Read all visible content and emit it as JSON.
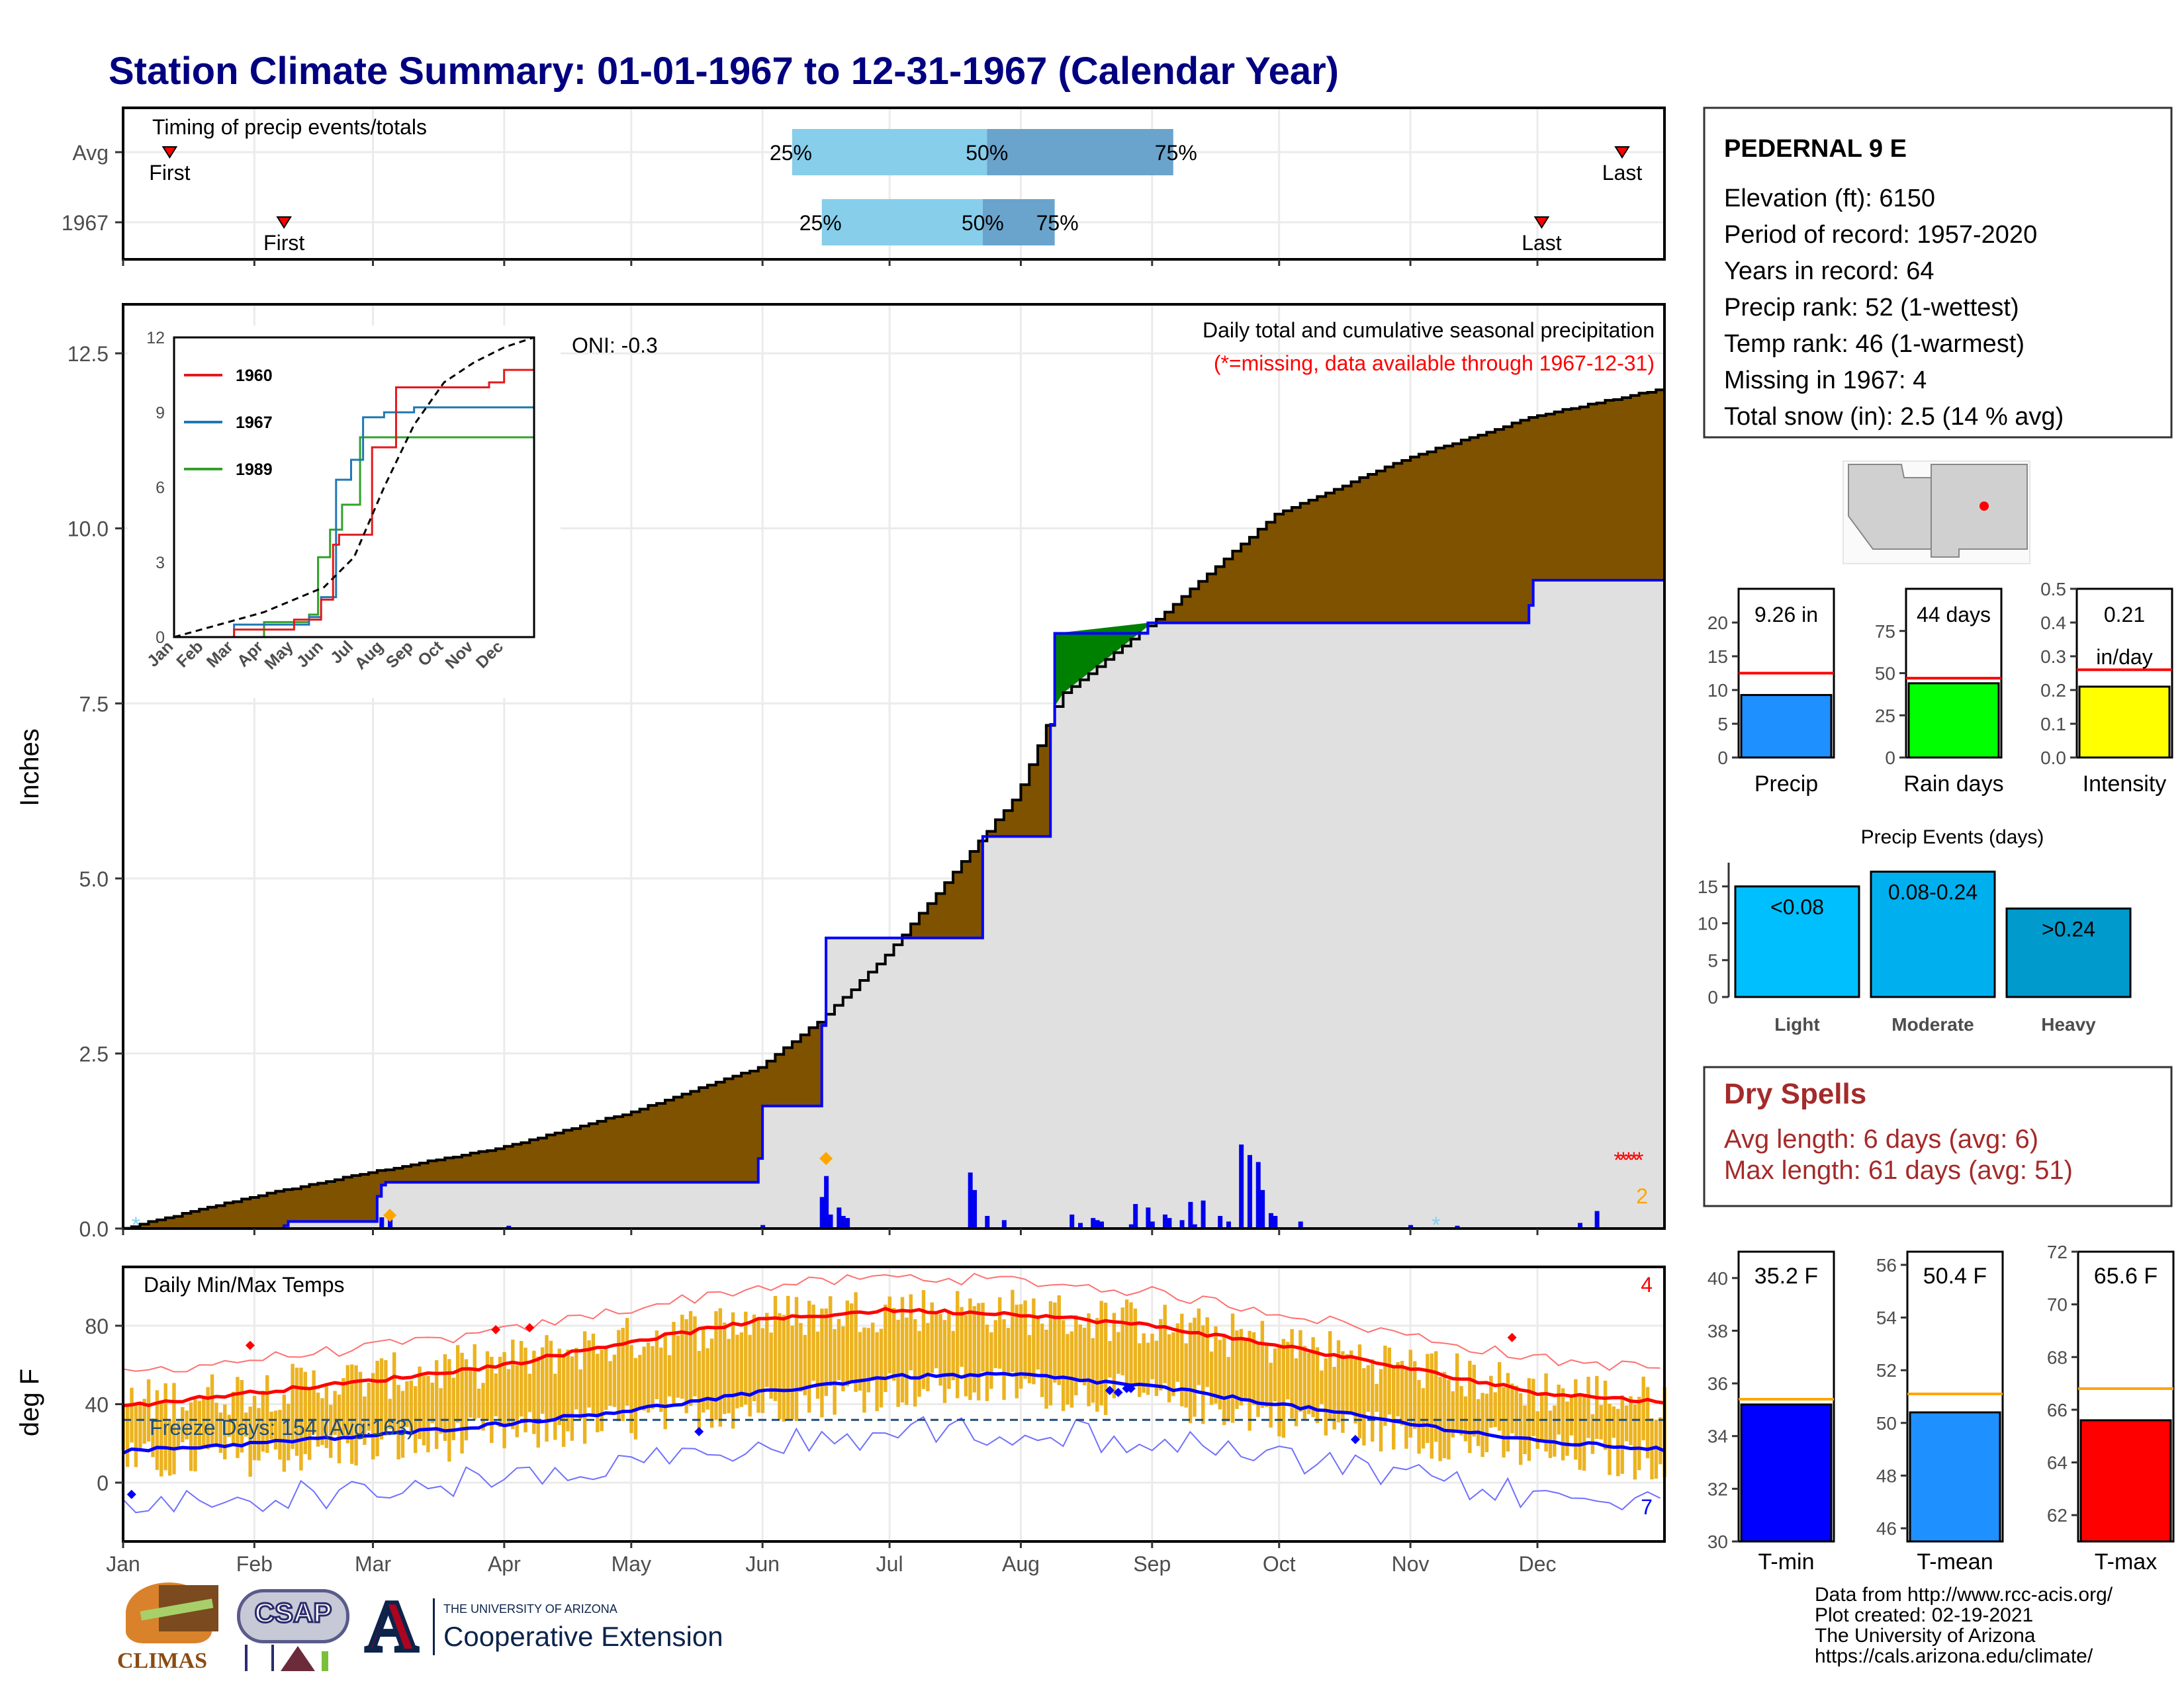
{
  "title": "Station Climate Summary: 01-01-1967 to 12-31-1967 (Calendar Year)",
  "colors": {
    "title": "#000080",
    "cum_fill": "#7f5200",
    "baseline_fill": "#e0e0e0",
    "above_fill": "#008000",
    "line_blue": "#0000ff",
    "bar_gold": "#ecb320",
    "tmax_red": "#ff0000",
    "tmin_blue": "#0000ff",
    "avg_light": "#87ceeb",
    "avg_dark": "#6aa4cc",
    "dry_red": "#a52a2a"
  },
  "months": [
    "Jan",
    "Feb",
    "Mar",
    "Apr",
    "May",
    "Jun",
    "Jul",
    "Aug",
    "Sep",
    "Oct",
    "Nov",
    "Dec"
  ],
  "timing": {
    "title": "Timing of precip events/totals",
    "rows": [
      {
        "label": "Avg",
        "first_label": "First",
        "last_label": "Last",
        "first_day": 12,
        "last_day": 355,
        "p25": 159,
        "p50": 205,
        "p75": 249,
        "p25_label": "25%",
        "p50_label": "50%",
        "p75_label": "75%"
      },
      {
        "label": "1967",
        "first_label": "First",
        "last_label": "Last",
        "first_day": 39,
        "last_day": 336,
        "p25": 166,
        "p50": 204,
        "p75": 221,
        "p25_label": "25%",
        "p50_label": "50%",
        "p75_label": "75%"
      }
    ]
  },
  "precip": {
    "ylabel": "Inches",
    "ylim": [
      0,
      13.2
    ],
    "yticks": [
      0.0,
      2.5,
      5.0,
      7.5,
      10.0,
      12.5
    ],
    "ytick_labels": [
      "0.0",
      "2.5",
      "5.0",
      "7.5",
      "10.0",
      "12.5"
    ],
    "title": "Daily total and cumulative seasonal precipitation",
    "subtitle": "(*=missing, data available through 1967-12-31)",
    "oni": "ONI: -0.3",
    "missing_count": "2"
  },
  "inset": {
    "xticks": [
      "Jan",
      "Feb",
      "Mar",
      "Apr",
      "May",
      "Jun",
      "Jul",
      "Aug",
      "Sep",
      "Oct",
      "Nov",
      "Dec"
    ],
    "yticks": [
      "0",
      "3",
      "6",
      "9",
      "12"
    ],
    "series": [
      {
        "name": "1960",
        "color": "#e31a1c"
      },
      {
        "name": "1967",
        "color": "#1f78b4"
      },
      {
        "name": "1989",
        "color": "#33a02c"
      }
    ]
  },
  "temps": {
    "title": "Daily Min/Max Temps",
    "ylabel": "deg F",
    "ylim": [
      -30,
      110
    ],
    "yticks": [
      0,
      40,
      80
    ],
    "ytick_labels": [
      "0",
      "40",
      "80"
    ],
    "freeze_label": "Freeze Days: 154 (Avg:163)",
    "missing_count_top": "4",
    "missing_count_bottom": "7"
  },
  "station": {
    "name": "PEDERNAL 9 E",
    "lines": [
      "Elevation (ft): 6150",
      "Period of record: 1957-2020",
      "Years in record: 64",
      "Precip rank: 52 (1-wettest)",
      "Temp rank: 46 (1-warmest)",
      "Missing in 1967: 4",
      "Total snow (in): 2.5 (14 % avg)"
    ]
  },
  "stat_bars": [
    {
      "label": "Precip",
      "value_label": "9.26 in",
      "value": 9.26,
      "avg": 12.5,
      "ymax": 25,
      "ticks": [
        "0",
        "5",
        "10",
        "15",
        "20"
      ],
      "tick_values": [
        0,
        5,
        10,
        15,
        20
      ],
      "color": "#1e90ff"
    },
    {
      "label": "Rain days",
      "value_label": "44 days",
      "value": 44,
      "avg": 47,
      "ymax": 100,
      "ticks": [
        "0",
        "25",
        "50",
        "75"
      ],
      "tick_values": [
        0,
        25,
        50,
        75
      ],
      "color": "#00ff00"
    },
    {
      "label": "Intensity",
      "value_label": "0.21\nin/day",
      "value": 0.21,
      "avg": 0.26,
      "ymax": 0.5,
      "ticks": [
        "0.0",
        "0.1",
        "0.2",
        "0.3",
        "0.4",
        "0.5"
      ],
      "tick_values": [
        0,
        0.1,
        0.2,
        0.3,
        0.4,
        0.5
      ],
      "color": "#ffff00"
    }
  ],
  "events": {
    "title": "Precip Events (days)",
    "categories": [
      "Light",
      "Moderate",
      "Heavy"
    ],
    "labels": [
      "<0.08",
      "0.08-0.24",
      ">0.24"
    ],
    "values": [
      15,
      17,
      12
    ],
    "colors": [
      "#00bfff",
      "#00b0ee",
      "#009acd"
    ],
    "ymax": 17.5,
    "ticks": [
      "0",
      "5",
      "10",
      "15"
    ],
    "tick_values": [
      0,
      5,
      10,
      15
    ]
  },
  "dry": {
    "title": "Dry Spells",
    "avg_line": "Avg length: 6 days (avg: 6)",
    "max_line": "Max length: 61 days (avg: 51)"
  },
  "temp_bars": [
    {
      "label": "T-min",
      "value_label": "35.2 F",
      "value": 35.2,
      "avg": 35.4,
      "ymin": 30,
      "ymax": 41,
      "ticks": [
        "30",
        "32",
        "34",
        "36",
        "38",
        "40"
      ],
      "tick_values": [
        30,
        32,
        34,
        36,
        38,
        40
      ],
      "color": "#0000ff"
    },
    {
      "label": "T-mean",
      "value_label": "50.4 F",
      "value": 50.4,
      "avg": 51.1,
      "ymin": 45.5,
      "ymax": 56.5,
      "ticks": [
        "46",
        "48",
        "50",
        "52",
        "54",
        "56"
      ],
      "tick_values": [
        46,
        48,
        50,
        52,
        54,
        56
      ],
      "color": "#1e90ff"
    },
    {
      "label": "T-max",
      "value_label": "65.6 F",
      "value": 65.6,
      "avg": 66.8,
      "ymin": 61,
      "ymax": 72,
      "ticks": [
        "62",
        "64",
        "66",
        "68",
        "70",
        "72"
      ],
      "tick_values": [
        62,
        64,
        66,
        68,
        70,
        72
      ],
      "color": "#ff0000"
    }
  ],
  "footer": {
    "lines": [
      "Data from http://www.rcc-acis.org/",
      "Plot created: 02-19-2021",
      "The University of Arizona",
      "https://cals.arizona.edu/climate/"
    ],
    "climas": "CLIMAS",
    "csap": "CSAP",
    "ua_small": "THE UNIVERSITY OF ARIZONA",
    "ua_big": "Cooperative Extension"
  },
  "chart_data": [
    {
      "type": "area",
      "title": "Daily total and cumulative seasonal precipitation",
      "ylabel": "Inches",
      "ylim": [
        0,
        13.2
      ],
      "x_unit": "day of year 1967",
      "series": [
        {
          "name": "cumulative average",
          "x": [
            1,
            31,
            59,
            90,
            120,
            151,
            166,
            181,
            212,
            222,
            243,
            273,
            304,
            334,
            365
          ],
          "values": [
            0,
            0.45,
            0.8,
            1.15,
            1.65,
            2.3,
            3.0,
            3.9,
            6.2,
            7.6,
            8.6,
            10.2,
            11.0,
            11.6,
            12.0
          ]
        },
        {
          "name": "1967 cumulative",
          "x": [
            1,
            39,
            40,
            61,
            62,
            63,
            151,
            152,
            166,
            167,
            204,
            220,
            221,
            243,
            304,
            333,
            334,
            365
          ],
          "values": [
            0,
            0.04,
            0.1,
            0.46,
            0.62,
            0.66,
            1.0,
            1.75,
            2.9,
            4.15,
            5.6,
            7.2,
            8.5,
            8.65,
            8.65,
            8.9,
            9.26,
            9.26
          ]
        }
      ]
    },
    {
      "type": "line",
      "title": "Daily Min/Max Temps",
      "ylabel": "deg F",
      "ylim": [
        -30,
        110
      ],
      "series": [
        {
          "name": "avg max",
          "x": [
            1,
            32,
            60,
            91,
            121,
            152,
            182,
            213,
            244,
            274,
            305,
            335,
            365
          ],
          "values": [
            39,
            46,
            52,
            60,
            72,
            83,
            88,
            86,
            80,
            70,
            58,
            46,
            41
          ]
        },
        {
          "name": "avg min",
          "x": [
            1,
            32,
            60,
            91,
            121,
            152,
            182,
            213,
            244,
            274,
            305,
            335,
            365
          ],
          "values": [
            16,
            20,
            24,
            30,
            37,
            46,
            54,
            55,
            49,
            40,
            30,
            21,
            17
          ]
        }
      ]
    },
    {
      "type": "bar",
      "categories": [
        "Light",
        "Moderate",
        "Heavy"
      ],
      "values": [
        15,
        17,
        12
      ],
      "title": "Precip Events (days)"
    }
  ]
}
